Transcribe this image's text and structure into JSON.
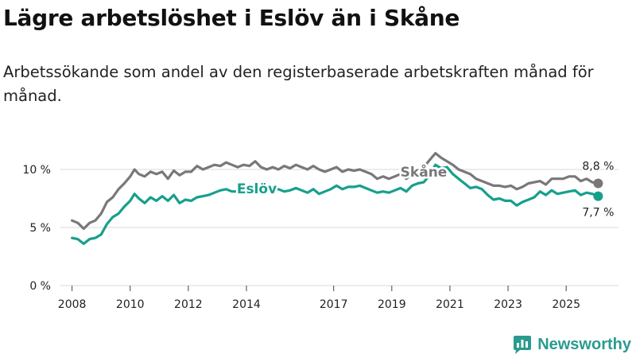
{
  "title": "Lägre arbetslöshet i Eslöv än i Skåne",
  "subtitle": "Arbetssökande som andel av den registerbaserade arbetskraften månad för månad.",
  "brand": {
    "name": "Newsworthy",
    "icon": "newsworthy-logo-icon",
    "color": "#2a9b8e"
  },
  "chart_data": {
    "type": "line",
    "xlabel": "",
    "ylabel": "",
    "xlim": [
      2007.6,
      2026.8
    ],
    "ylim": [
      0,
      13
    ],
    "grid": true,
    "yticks": [
      {
        "value": 0,
        "label": "0 %"
      },
      {
        "value": 5,
        "label": "5 %"
      },
      {
        "value": 10,
        "label": "10 %"
      }
    ],
    "xticks": [
      {
        "value": 2008,
        "label": "2008"
      },
      {
        "value": 2010,
        "label": "2010"
      },
      {
        "value": 2012,
        "label": "2012"
      },
      {
        "value": 2014,
        "label": "2014"
      },
      {
        "value": 2017,
        "label": "2017"
      },
      {
        "value": 2019,
        "label": "2019"
      },
      {
        "value": 2021,
        "label": "2021"
      },
      {
        "value": 2023,
        "label": "2023"
      },
      {
        "value": 2025,
        "label": "2025"
      }
    ],
    "series": [
      {
        "name": "Skåne",
        "color": "#7a777a",
        "end_label": "8,8 %",
        "points": [
          [
            2008.0,
            5.6
          ],
          [
            2008.2,
            5.4
          ],
          [
            2008.4,
            4.9
          ],
          [
            2008.6,
            5.4
          ],
          [
            2008.8,
            5.6
          ],
          [
            2009.0,
            6.2
          ],
          [
            2009.2,
            7.2
          ],
          [
            2009.4,
            7.6
          ],
          [
            2009.6,
            8.3
          ],
          [
            2009.8,
            8.8
          ],
          [
            2010.0,
            9.4
          ],
          [
            2010.15,
            10.0
          ],
          [
            2010.3,
            9.6
          ],
          [
            2010.5,
            9.4
          ],
          [
            2010.7,
            9.8
          ],
          [
            2010.9,
            9.6
          ],
          [
            2011.1,
            9.8
          ],
          [
            2011.3,
            9.2
          ],
          [
            2011.5,
            9.9
          ],
          [
            2011.7,
            9.5
          ],
          [
            2011.9,
            9.8
          ],
          [
            2012.1,
            9.8
          ],
          [
            2012.3,
            10.3
          ],
          [
            2012.5,
            10.0
          ],
          [
            2012.7,
            10.2
          ],
          [
            2012.9,
            10.4
          ],
          [
            2013.1,
            10.3
          ],
          [
            2013.3,
            10.6
          ],
          [
            2013.5,
            10.4
          ],
          [
            2013.7,
            10.2
          ],
          [
            2013.9,
            10.4
          ],
          [
            2014.1,
            10.3
          ],
          [
            2014.3,
            10.7
          ],
          [
            2014.5,
            10.2
          ],
          [
            2014.7,
            10.0
          ],
          [
            2014.9,
            10.2
          ],
          [
            2015.1,
            10.0
          ],
          [
            2015.3,
            10.3
          ],
          [
            2015.5,
            10.1
          ],
          [
            2015.7,
            10.4
          ],
          [
            2015.9,
            10.2
          ],
          [
            2016.1,
            10.0
          ],
          [
            2016.3,
            10.3
          ],
          [
            2016.5,
            10.0
          ],
          [
            2016.7,
            9.8
          ],
          [
            2016.9,
            10.0
          ],
          [
            2017.1,
            10.2
          ],
          [
            2017.3,
            9.8
          ],
          [
            2017.5,
            10.0
          ],
          [
            2017.7,
            9.9
          ],
          [
            2017.9,
            10.0
          ],
          [
            2018.1,
            9.8
          ],
          [
            2018.3,
            9.6
          ],
          [
            2018.5,
            9.2
          ],
          [
            2018.7,
            9.4
          ],
          [
            2018.9,
            9.2
          ],
          [
            2019.1,
            9.4
          ],
          [
            2019.3,
            9.6
          ],
          [
            2019.5,
            9.2
          ],
          [
            2019.7,
            9.6
          ],
          [
            2019.9,
            9.8
          ],
          [
            2020.1,
            10.2
          ],
          [
            2020.3,
            10.8
          ],
          [
            2020.5,
            11.4
          ],
          [
            2020.7,
            11.0
          ],
          [
            2020.9,
            10.7
          ],
          [
            2021.1,
            10.4
          ],
          [
            2021.3,
            10.0
          ],
          [
            2021.5,
            9.8
          ],
          [
            2021.7,
            9.6
          ],
          [
            2021.9,
            9.2
          ],
          [
            2022.1,
            9.0
          ],
          [
            2022.3,
            8.8
          ],
          [
            2022.5,
            8.6
          ],
          [
            2022.7,
            8.6
          ],
          [
            2022.9,
            8.5
          ],
          [
            2023.1,
            8.6
          ],
          [
            2023.3,
            8.3
          ],
          [
            2023.5,
            8.5
          ],
          [
            2023.7,
            8.8
          ],
          [
            2023.9,
            8.9
          ],
          [
            2024.1,
            9.0
          ],
          [
            2024.3,
            8.7
          ],
          [
            2024.5,
            9.2
          ],
          [
            2024.7,
            9.2
          ],
          [
            2024.9,
            9.2
          ],
          [
            2025.1,
            9.4
          ],
          [
            2025.3,
            9.4
          ],
          [
            2025.5,
            9.0
          ],
          [
            2025.7,
            9.2
          ],
          [
            2025.9,
            8.9
          ],
          [
            2026.1,
            8.8
          ]
        ]
      },
      {
        "name": "Eslöv",
        "color": "#16a08c",
        "end_label": "7,7 %",
        "points": [
          [
            2008.0,
            4.1
          ],
          [
            2008.2,
            4.0
          ],
          [
            2008.4,
            3.6
          ],
          [
            2008.6,
            4.0
          ],
          [
            2008.8,
            4.1
          ],
          [
            2009.0,
            4.4
          ],
          [
            2009.2,
            5.3
          ],
          [
            2009.4,
            5.9
          ],
          [
            2009.6,
            6.2
          ],
          [
            2009.8,
            6.8
          ],
          [
            2010.0,
            7.3
          ],
          [
            2010.15,
            7.9
          ],
          [
            2010.3,
            7.5
          ],
          [
            2010.5,
            7.1
          ],
          [
            2010.7,
            7.6
          ],
          [
            2010.9,
            7.3
          ],
          [
            2011.1,
            7.7
          ],
          [
            2011.3,
            7.3
          ],
          [
            2011.5,
            7.8
          ],
          [
            2011.7,
            7.1
          ],
          [
            2011.9,
            7.4
          ],
          [
            2012.1,
            7.3
          ],
          [
            2012.3,
            7.6
          ],
          [
            2012.5,
            7.7
          ],
          [
            2012.7,
            7.8
          ],
          [
            2012.9,
            8.0
          ],
          [
            2013.1,
            8.2
          ],
          [
            2013.3,
            8.3
          ],
          [
            2013.5,
            8.1
          ],
          [
            2013.7,
            8.1
          ],
          [
            2013.9,
            7.9
          ],
          [
            2014.1,
            7.9
          ],
          [
            2014.3,
            8.2
          ],
          [
            2014.5,
            8.4
          ],
          [
            2014.7,
            8.2
          ],
          [
            2014.9,
            8.3
          ],
          [
            2015.1,
            8.3
          ],
          [
            2015.3,
            8.1
          ],
          [
            2015.5,
            8.2
          ],
          [
            2015.7,
            8.4
          ],
          [
            2015.9,
            8.2
          ],
          [
            2016.1,
            8.0
          ],
          [
            2016.3,
            8.3
          ],
          [
            2016.5,
            7.9
          ],
          [
            2016.7,
            8.1
          ],
          [
            2016.9,
            8.3
          ],
          [
            2017.1,
            8.6
          ],
          [
            2017.3,
            8.3
          ],
          [
            2017.5,
            8.5
          ],
          [
            2017.7,
            8.5
          ],
          [
            2017.9,
            8.6
          ],
          [
            2018.1,
            8.4
          ],
          [
            2018.3,
            8.2
          ],
          [
            2018.5,
            8.0
          ],
          [
            2018.7,
            8.1
          ],
          [
            2018.9,
            8.0
          ],
          [
            2019.1,
            8.2
          ],
          [
            2019.3,
            8.4
          ],
          [
            2019.5,
            8.1
          ],
          [
            2019.7,
            8.6
          ],
          [
            2019.9,
            8.8
          ],
          [
            2020.1,
            8.9
          ],
          [
            2020.3,
            9.5
          ],
          [
            2020.5,
            10.4
          ],
          [
            2020.7,
            10.1
          ],
          [
            2020.9,
            10.2
          ],
          [
            2021.1,
            9.6
          ],
          [
            2021.3,
            9.2
          ],
          [
            2021.5,
            8.8
          ],
          [
            2021.7,
            8.4
          ],
          [
            2021.9,
            8.5
          ],
          [
            2022.1,
            8.3
          ],
          [
            2022.3,
            7.8
          ],
          [
            2022.5,
            7.4
          ],
          [
            2022.7,
            7.5
          ],
          [
            2022.9,
            7.3
          ],
          [
            2023.1,
            7.3
          ],
          [
            2023.3,
            6.9
          ],
          [
            2023.5,
            7.2
          ],
          [
            2023.7,
            7.4
          ],
          [
            2023.9,
            7.6
          ],
          [
            2024.1,
            8.1
          ],
          [
            2024.3,
            7.8
          ],
          [
            2024.5,
            8.2
          ],
          [
            2024.7,
            7.9
          ],
          [
            2024.9,
            8.0
          ],
          [
            2025.1,
            8.1
          ],
          [
            2025.3,
            8.2
          ],
          [
            2025.5,
            7.8
          ],
          [
            2025.7,
            8.0
          ],
          [
            2025.9,
            7.9
          ],
          [
            2026.1,
            7.7
          ]
        ]
      }
    ]
  }
}
